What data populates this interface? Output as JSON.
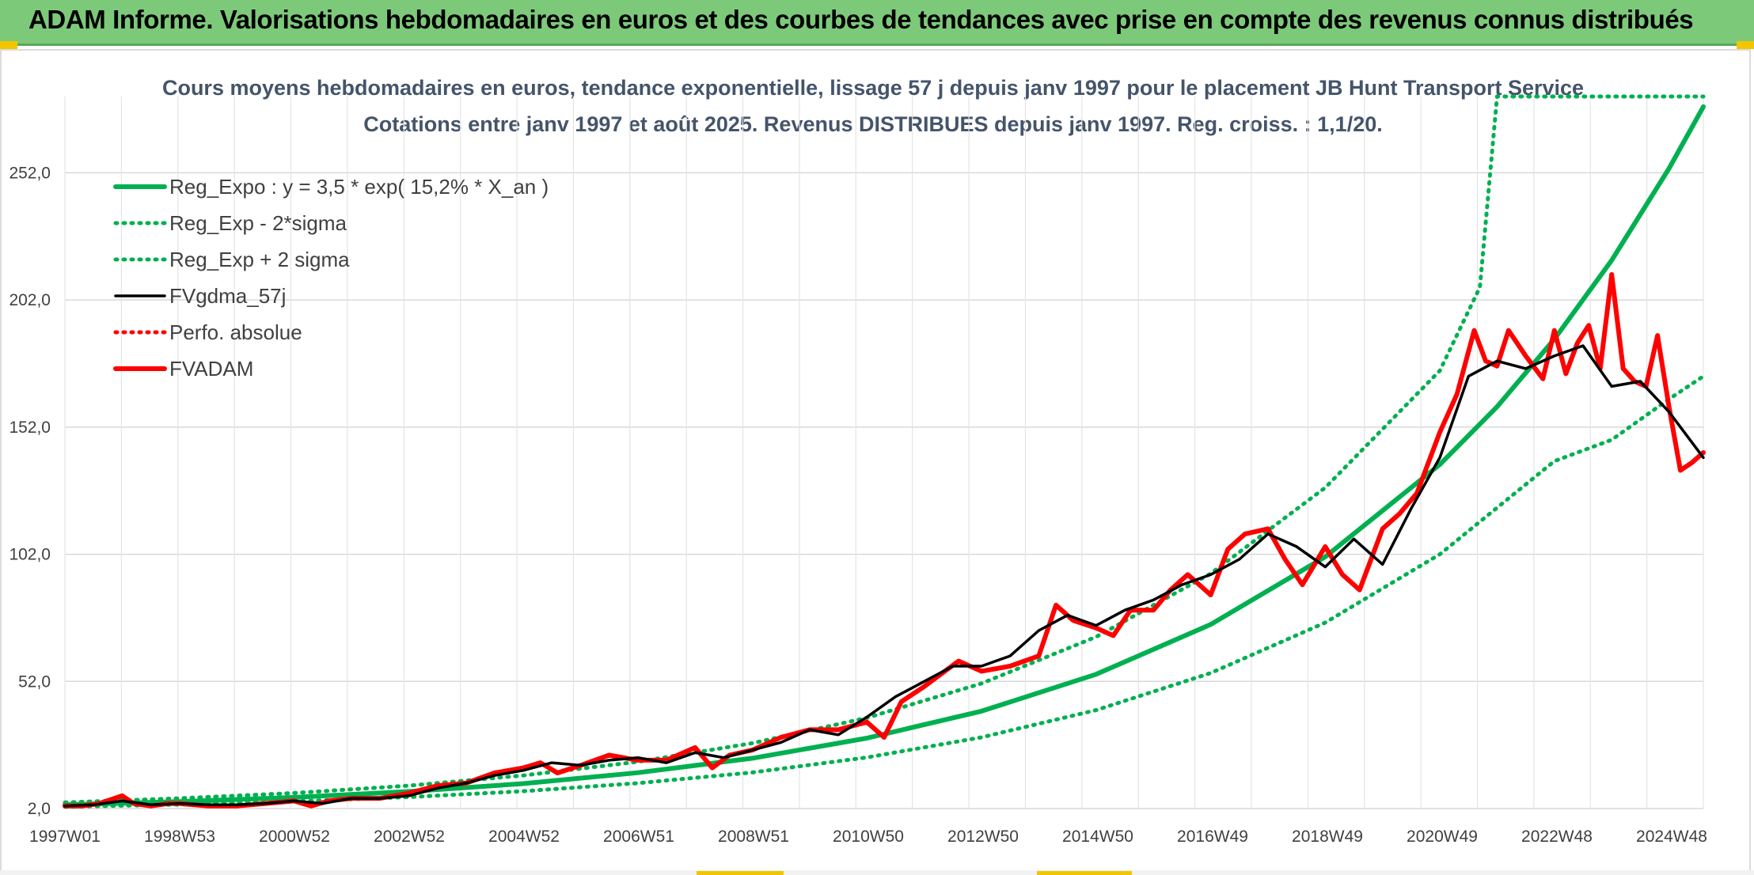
{
  "header": {
    "title": "ADAM Informe. Valorisations hebdomadaires en euros et des courbes de tendances avec prise en compte des revenus connus distribués"
  },
  "colors": {
    "header_bg": "#7dc97a",
    "reg_expo": "#00b050",
    "fvgdma": "#000000",
    "fvadam": "#ff0000",
    "grid": "#d9d9d9",
    "title_text": "#44546a"
  },
  "chart_data": {
    "type": "line",
    "title": "Cours moyens hebdomadaires en euros, tendance exponentielle, lissage 57 j depuis janv 1997 pour le placement JB Hunt Transport Service",
    "subtitle": "Cotations entre janv 1997 et août 2025. Revenus DISTRIBUES depuis janv 1997. Reg. croiss. : 1,1/20.",
    "xlabel": "",
    "ylabel": "",
    "x_ticks": [
      "1997W01",
      "1998W53",
      "2000W52",
      "2002W52",
      "2004W52",
      "2006W51",
      "2008W51",
      "2010W50",
      "2012W50",
      "2014W50",
      "2016W49",
      "2018W49",
      "2020W49",
      "2022W48",
      "2024W48"
    ],
    "y_ticks": [
      "2,0",
      "52,0",
      "102,0",
      "152,0",
      "202,0",
      "252,0"
    ],
    "ylim": [
      2,
      282
    ],
    "xlim": [
      1997.0,
      2025.6
    ],
    "grid": true,
    "legend_position": "top-left",
    "series": [
      {
        "name": "Reg_Expo : y = 3,5 * exp( 15,2% *  X_an )",
        "style": "solid-thick",
        "color": "#00b050",
        "x": [
          1997,
          1999,
          2001,
          2003,
          2005,
          2007,
          2009,
          2011,
          2013,
          2015,
          2017,
          2019,
          2021,
          2022,
          2023,
          2024,
          2025,
          2025.6
        ],
        "y": [
          3.5,
          4.7,
          6.4,
          8.7,
          11.8,
          16.1,
          21.8,
          29.7,
          40.3,
          54.8,
          74.4,
          101.0,
          137.3,
          160.0,
          186.6,
          217.6,
          253.7,
          278.0
        ]
      },
      {
        "name": "Reg_Exp - 2*sigma",
        "style": "dotted",
        "color": "#00b050",
        "x": [
          1997,
          1999,
          2001,
          2003,
          2005,
          2007,
          2009,
          2011,
          2013,
          2015,
          2017,
          2019,
          2021,
          2023,
          2024,
          2025,
          2025.6
        ],
        "y": [
          2.7,
          3.6,
          4.8,
          6.5,
          8.8,
          12.0,
          16.2,
          22.1,
          30.0,
          40.7,
          55.3,
          75.1,
          102.0,
          138.6,
          147.0,
          163.0,
          172.0
        ]
      },
      {
        "name": "Reg_Exp + 2 sigma",
        "style": "dotted",
        "color": "#00b050",
        "x": [
          1997,
          1999,
          2001,
          2003,
          2005,
          2007,
          2009,
          2011,
          2013,
          2015,
          2017,
          2019,
          2021,
          2021.7,
          2022.0,
          2025.6
        ],
        "y": [
          4.4,
          6.0,
          8.1,
          11.0,
          15.0,
          20.4,
          27.7,
          37.7,
          51.2,
          69.5,
          94.4,
          128.2,
          174.2,
          207.0,
          300.0,
          300.0
        ]
      },
      {
        "name": "FVgdma_57j",
        "style": "solid",
        "color": "#000000",
        "x": [
          1997,
          1997.5,
          1998,
          1998.5,
          1999,
          1999.5,
          2000,
          2000.5,
          2001,
          2001.5,
          2002,
          2002.5,
          2003,
          2003.5,
          2004,
          2004.5,
          2005,
          2005.5,
          2006,
          2006.5,
          2007,
          2007.5,
          2008,
          2008.5,
          2009,
          2009.5,
          2010,
          2010.5,
          2011,
          2011.5,
          2012,
          2012.5,
          2013,
          2013.5,
          2014,
          2014.5,
          2015,
          2015.5,
          2016,
          2016.5,
          2017,
          2017.5,
          2018,
          2018.5,
          2019,
          2019.5,
          2020,
          2020.5,
          2021,
          2021.5,
          2022,
          2022.5,
          2023,
          2023.5,
          2024,
          2024.5,
          2025,
          2025.6
        ],
        "y": [
          3,
          3.5,
          5,
          3.5,
          4,
          3.5,
          3.5,
          4,
          5,
          4,
          6,
          6,
          7,
          10,
          12,
          15,
          17,
          20,
          19,
          21,
          22,
          20,
          24,
          22,
          25,
          28,
          33,
          31,
          38,
          46,
          52,
          58,
          58,
          62,
          72,
          78,
          74,
          80,
          84,
          90,
          94,
          100,
          110,
          105,
          97,
          108,
          98,
          120,
          140,
          172,
          178,
          175,
          180,
          184,
          168,
          170,
          158,
          140
        ]
      },
      {
        "name": "Perfo. absolue",
        "style": "dotted",
        "color": "#ff0000",
        "x": [],
        "y": []
      },
      {
        "name": "FVADAM",
        "style": "solid-thick",
        "color": "#ff0000",
        "x": [
          1997,
          1997.3,
          1997.6,
          1998,
          1998.2,
          1998.5,
          1998.8,
          1999,
          1999.5,
          2000,
          2000.5,
          2001,
          2001.3,
          2001.6,
          2002,
          2002.5,
          2003,
          2003.5,
          2004,
          2004.5,
          2005,
          2005.3,
          2005.6,
          2006,
          2006.5,
          2007,
          2007.5,
          2008,
          2008.3,
          2008.6,
          2009,
          2009.5,
          2010,
          2010.5,
          2011,
          2011.3,
          2011.6,
          2012,
          2012.3,
          2012.6,
          2013,
          2013.5,
          2014,
          2014.3,
          2014.6,
          2015,
          2015.3,
          2015.6,
          2016,
          2016.3,
          2016.6,
          2017,
          2017.3,
          2017.6,
          2018,
          2018.3,
          2018.6,
          2019,
          2019.3,
          2019.6,
          2020,
          2020.3,
          2020.6,
          2021,
          2021.3,
          2021.6,
          2021.8,
          2022,
          2022.2,
          2022.5,
          2022.8,
          2023,
          2023.2,
          2023.4,
          2023.6,
          2023.8,
          2024,
          2024.2,
          2024.4,
          2024.6,
          2024.8,
          2025,
          2025.2,
          2025.4,
          2025.6
        ],
        "y": [
          3,
          3,
          4,
          7,
          4,
          3,
          4,
          4,
          3,
          3,
          4,
          5,
          3,
          5,
          6,
          6,
          8,
          11,
          12,
          16,
          18,
          20,
          16,
          19,
          23,
          21,
          21,
          26,
          18,
          23,
          25,
          30,
          33,
          33,
          36,
          30,
          44,
          50,
          55,
          60,
          56,
          58,
          62,
          82,
          76,
          73,
          70,
          80,
          80,
          88,
          94,
          86,
          104,
          110,
          112,
          100,
          90,
          105,
          94,
          88,
          112,
          118,
          126,
          150,
          165,
          190,
          178,
          176,
          190,
          180,
          171,
          190,
          173,
          185,
          192,
          175,
          212,
          175,
          170,
          168,
          188,
          160,
          135,
          138,
          142
        ]
      }
    ]
  }
}
